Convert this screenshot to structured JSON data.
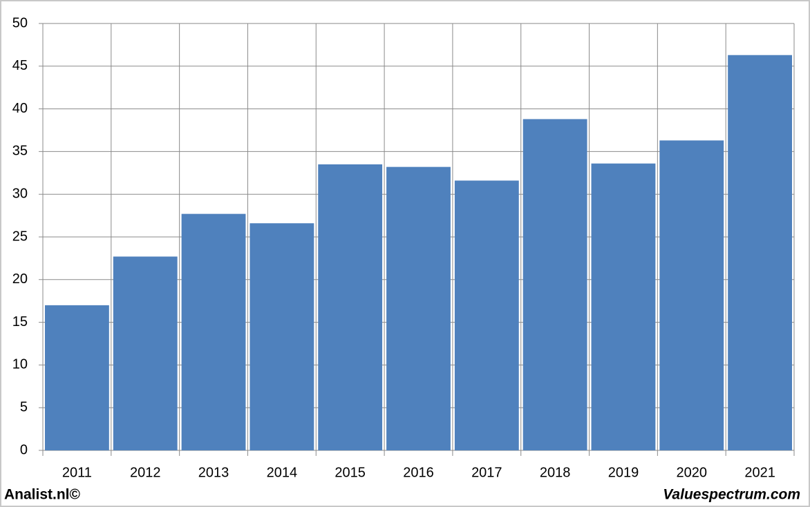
{
  "chart_data": {
    "type": "bar",
    "categories": [
      "2011",
      "2012",
      "2013",
      "2014",
      "2015",
      "2016",
      "2017",
      "2018",
      "2019",
      "2020",
      "2021"
    ],
    "values": [
      17.0,
      22.7,
      27.7,
      26.6,
      33.5,
      33.2,
      31.6,
      38.8,
      33.6,
      36.3,
      46.3
    ],
    "color": "#4f81bd",
    "ylim": [
      0,
      50
    ],
    "yticks": [
      0,
      5,
      10,
      15,
      20,
      25,
      30,
      35,
      40,
      45,
      50
    ],
    "grid": true,
    "credits": [
      "Analist.nl©",
      "Valuespectrum.com"
    ]
  }
}
